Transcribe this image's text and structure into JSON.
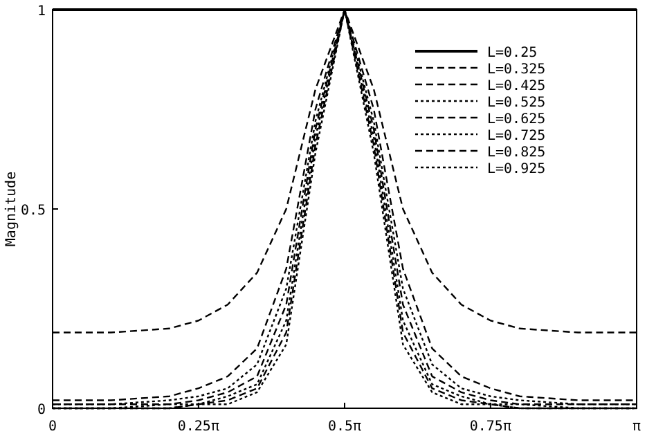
{
  "chart_data": {
    "type": "line",
    "ylabel": "Magnitude",
    "x": [
      0,
      0.314,
      0.628,
      0.785,
      0.942,
      1.1,
      1.257,
      1.414,
      1.571,
      1.728,
      1.885,
      2.042,
      2.199,
      2.356,
      2.513,
      2.827,
      3.142
    ],
    "xlim": [
      0,
      3.142
    ],
    "xticks": [
      0,
      {
        "value": 0.785,
        "label": "0.25π"
      },
      {
        "value": 1.571,
        "label": "0.5π"
      },
      {
        "value": 2.356,
        "label": "0.75π"
      },
      {
        "value": 3.142,
        "label": "π"
      }
    ],
    "ylim": [
      0,
      1
    ],
    "yticks": [
      0,
      0.5,
      1
    ],
    "grid": false,
    "legend": "top right",
    "marker": "none",
    "series": [
      {
        "name": "L=0.25",
        "color": "#000000",
        "line_style": "solid",
        "values": [
          1,
          1,
          1,
          1,
          1,
          1,
          1,
          1,
          1,
          1,
          1,
          1,
          1,
          1,
          1,
          1,
          1
        ]
      },
      {
        "name": "L=0.325",
        "color": "#000000",
        "line_style": "dashed",
        "values": [
          0.19,
          0.19,
          0.2,
          0.22,
          0.26,
          0.34,
          0.5,
          0.8,
          1,
          0.8,
          0.5,
          0.34,
          0.26,
          0.22,
          0.2,
          0.19,
          0.19
        ]
      },
      {
        "name": "L=0.425",
        "color": "#000000",
        "line_style": "dashed",
        "values": [
          0.02,
          0.02,
          0.03,
          0.05,
          0.08,
          0.15,
          0.35,
          0.75,
          1,
          0.75,
          0.35,
          0.15,
          0.08,
          0.05,
          0.03,
          0.02,
          0.02
        ]
      },
      {
        "name": "L=0.525",
        "color": "#000000",
        "line_style": "dotted",
        "values": [
          0.01,
          0.01,
          0.02,
          0.03,
          0.05,
          0.11,
          0.3,
          0.72,
          1,
          0.72,
          0.3,
          0.11,
          0.05,
          0.03,
          0.02,
          0.01,
          0.01
        ]
      },
      {
        "name": "L=0.625",
        "color": "#000000",
        "line_style": "dashed",
        "values": [
          0.01,
          0.01,
          0.01,
          0.02,
          0.04,
          0.08,
          0.26,
          0.7,
          1,
          0.7,
          0.26,
          0.08,
          0.04,
          0.02,
          0.01,
          0.01,
          0.01
        ]
      },
      {
        "name": "L=0.725",
        "color": "#000000",
        "line_style": "dotted",
        "values": [
          0,
          0,
          0.01,
          0.01,
          0.03,
          0.06,
          0.22,
          0.68,
          1,
          0.68,
          0.22,
          0.06,
          0.03,
          0.01,
          0.01,
          0,
          0
        ]
      },
      {
        "name": "L=0.825",
        "color": "#000000",
        "line_style": "dashed",
        "values": [
          0,
          0,
          0,
          0.01,
          0.02,
          0.05,
          0.19,
          0.66,
          1,
          0.66,
          0.19,
          0.05,
          0.02,
          0.01,
          0,
          0,
          0
        ]
      },
      {
        "name": "L=0.925",
        "color": "#000000",
        "line_style": "dotted",
        "values": [
          0,
          0,
          0,
          0.01,
          0.01,
          0.04,
          0.16,
          0.64,
          1,
          0.64,
          0.16,
          0.04,
          0.01,
          0.01,
          0,
          0,
          0
        ]
      }
    ]
  }
}
